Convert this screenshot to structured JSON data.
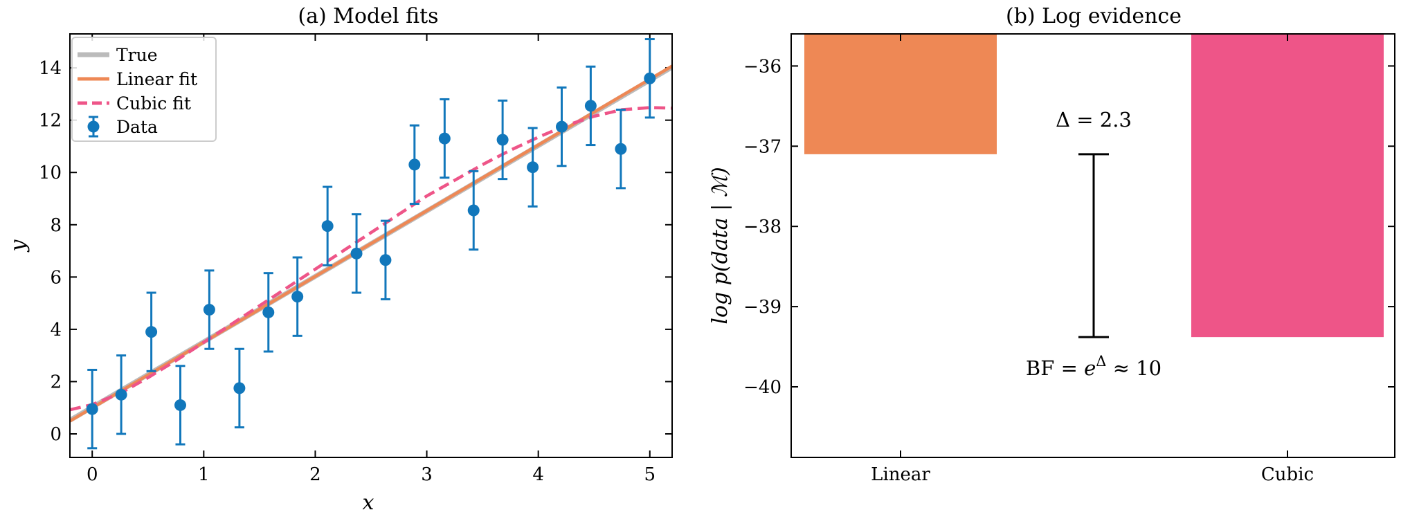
{
  "chart_data": [
    {
      "type": "scatter",
      "title": "(a) Model fits",
      "xlabel": "x",
      "ylabel": "y",
      "xlim": [
        -0.2,
        5.2
      ],
      "ylim": [
        -0.9,
        15.3
      ],
      "xticks": [
        0,
        1,
        2,
        3,
        4,
        5
      ],
      "xtick_labels": [
        "0",
        "1",
        "2",
        "3",
        "4",
        "5"
      ],
      "yticks": [
        0,
        2,
        4,
        6,
        8,
        10,
        12,
        14
      ],
      "ytick_labels": [
        "0",
        "2",
        "4",
        "6",
        "8",
        "10",
        "12",
        "14"
      ],
      "series": [
        {
          "name": "True",
          "kind": "line",
          "color": "#BBBBBB",
          "x": [
            -0.2,
            5.2
          ],
          "y": [
            0.52,
            14.03
          ]
        },
        {
          "name": "Linear fit",
          "kind": "line",
          "color": "#EE8855",
          "x": [
            -0.2,
            5.2
          ],
          "y": [
            0.49,
            14.07
          ]
        },
        {
          "name": "Cubic fit",
          "kind": "dashed-line",
          "color": "#EE5588",
          "x": [
            -0.2,
            0.0,
            0.25,
            0.5,
            0.75,
            1.0,
            1.25,
            1.5,
            1.75,
            2.0,
            2.25,
            2.5,
            2.75,
            3.0,
            3.25,
            3.5,
            3.75,
            4.0,
            4.25,
            4.5,
            4.75,
            5.0,
            5.2
          ],
          "y": [
            0.92,
            1.12,
            1.55,
            2.15,
            2.8,
            3.5,
            4.2,
            4.9,
            5.6,
            6.3,
            7.0,
            7.7,
            8.4,
            9.1,
            9.7,
            10.3,
            10.85,
            11.35,
            11.8,
            12.15,
            12.4,
            12.48,
            12.46
          ]
        },
        {
          "name": "Data",
          "kind": "errorbar",
          "color": "#1177BB",
          "yerr": 1.5,
          "x": [
            0.0,
            0.26,
            0.53,
            0.79,
            1.05,
            1.32,
            1.58,
            1.84,
            2.11,
            2.37,
            2.63,
            2.89,
            3.16,
            3.42,
            3.68,
            3.95,
            4.21,
            4.47,
            4.74,
            5.0
          ],
          "y": [
            0.95,
            1.5,
            3.9,
            1.1,
            4.75,
            1.75,
            4.65,
            5.25,
            7.95,
            6.9,
            6.65,
            10.3,
            11.3,
            8.55,
            11.25,
            10.2,
            11.75,
            12.55,
            10.9,
            13.6
          ]
        }
      ],
      "legend": [
        "True",
        "Linear fit",
        "Cubic fit",
        "Data"
      ],
      "legend_position": "top-left"
    },
    {
      "type": "bar",
      "title": "(b) Log evidence",
      "ylabel": "log p(data | ℳ)",
      "categories": [
        "Linear",
        "Cubic"
      ],
      "values": [
        -37.1,
        -39.38
      ],
      "colors": [
        "#EE8855",
        "#EE5588"
      ],
      "ylim": [
        -40.88,
        -35.6
      ],
      "yticks": [
        -36,
        -37,
        -38,
        -39,
        -40
      ],
      "ytick_labels": [
        "−36",
        "−37",
        "−38",
        "−39",
        "−40"
      ],
      "gap_bar": {
        "top": -37.1,
        "bottom": -39.38
      },
      "delta_label": "Δ = 2.3",
      "bf_label": {
        "prefix": "BF = ",
        "base": "e",
        "exponent": "Δ",
        "suffix": " ≈ 10"
      }
    }
  ]
}
